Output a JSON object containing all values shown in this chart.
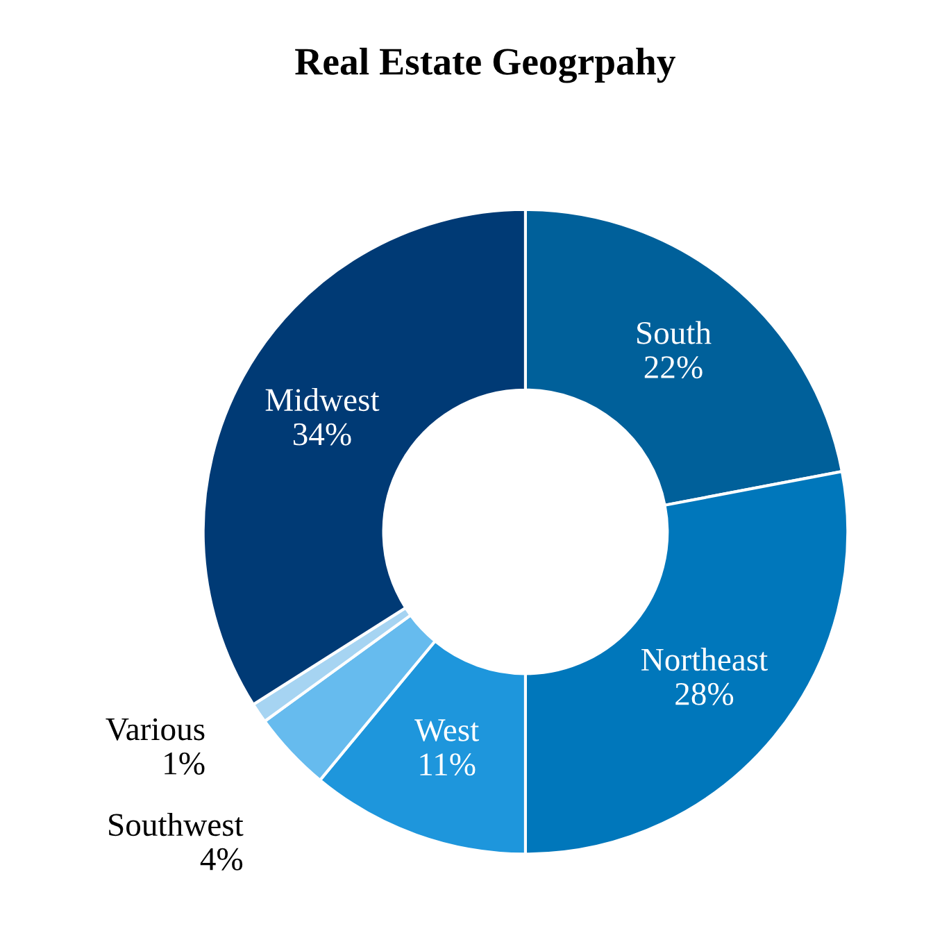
{
  "chart_data": {
    "type": "donut",
    "title": "Real Estate Geogrpahy",
    "categories": [
      "South",
      "Northeast",
      "West",
      "Southwest",
      "Various",
      "Midwest"
    ],
    "values": [
      22,
      28,
      11,
      4,
      1,
      34
    ],
    "colors": [
      "#00609a",
      "#0077bb",
      "#1e96dc",
      "#66bbee",
      "#a6d4f2",
      "#003a75"
    ],
    "value_labels": [
      "22%",
      "28%",
      "11%",
      "4%",
      "1%",
      "34%"
    ],
    "legend": false
  }
}
